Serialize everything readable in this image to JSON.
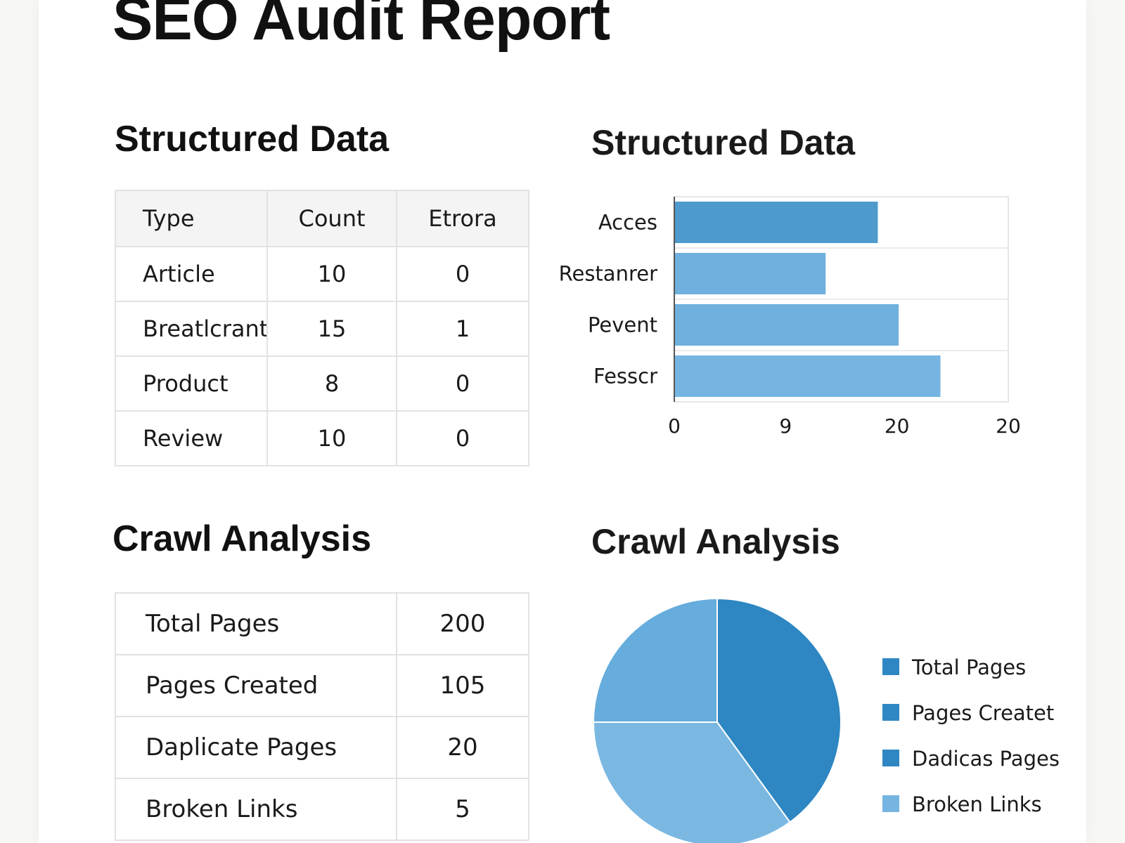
{
  "report": {
    "title": "SEO Audit Report"
  },
  "structured_data": {
    "table_title": "Structured Data",
    "columns": [
      "Type",
      "Count",
      "Etrora"
    ],
    "rows": [
      [
        "Article",
        "10",
        "0"
      ],
      [
        "Breatlcrants",
        "15",
        "1"
      ],
      [
        "Product",
        "8",
        "0"
      ],
      [
        "Review",
        "10",
        "0"
      ]
    ]
  },
  "crawl_analysis": {
    "table_title": "Crawl Analysis",
    "rows": [
      [
        "Total Pages",
        "200"
      ],
      [
        "Pages Created",
        "105"
      ],
      [
        "Daplicate Pages",
        "20"
      ],
      [
        "Broken Links",
        "5"
      ]
    ]
  },
  "chart_data": [
    {
      "type": "bar",
      "orientation": "horizontal",
      "title": "Structured Data",
      "categories": [
        "Acces",
        "Restanrer",
        "Pevent",
        "Fesscr"
      ],
      "values": [
        19.5,
        14.5,
        21.5,
        25.5
      ],
      "x_tick_labels": [
        "0",
        "9",
        "20",
        "20"
      ],
      "xlim": [
        0,
        32
      ],
      "grid": true,
      "color": "#4f9acd",
      "colors": [
        "#4f9acd",
        "#6fb0de",
        "#6fb0de",
        "#76b5e1"
      ]
    },
    {
      "type": "pie",
      "title": "Crawl Analysis",
      "legend_position": "right",
      "labels": [
        "Total Pages",
        "Pages Createt",
        "Dadicas Pages",
        "Broken Links"
      ],
      "values": [
        40,
        35,
        25,
        0
      ],
      "slice_colors": [
        "#2e87c2",
        "#7ab8e2",
        "#66acdc"
      ],
      "legend_colors": [
        "#2e87c2",
        "#2f88c3",
        "#2e87c2",
        "#76b5e1"
      ]
    }
  ]
}
